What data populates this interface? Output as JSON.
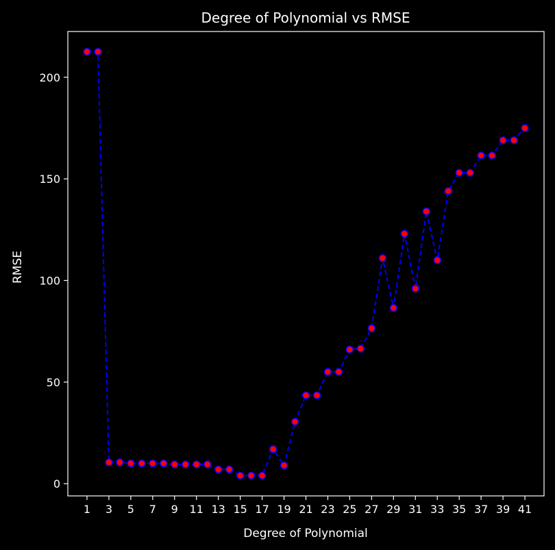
{
  "chart_data": {
    "type": "line",
    "title": "Degree of Polynomial vs RMSE",
    "xlabel": "Degree of Polynomial",
    "ylabel": "RMSE",
    "xlim": [
      -0.75,
      42.75
    ],
    "ylim": [
      -6,
      222.5
    ],
    "x_ticks": [
      1,
      3,
      5,
      7,
      9,
      11,
      13,
      15,
      17,
      19,
      21,
      23,
      25,
      27,
      29,
      31,
      33,
      35,
      37,
      39,
      41
    ],
    "y_ticks": [
      0,
      50,
      100,
      150,
      200
    ],
    "grid": false,
    "series": [
      {
        "name": "RMSE",
        "line_color": "#0000ff",
        "line_style": "dashed",
        "marker_face_color": "#ff0000",
        "marker_edge_color": "#0000ff",
        "x": [
          1,
          2,
          3,
          4,
          5,
          6,
          7,
          8,
          9,
          10,
          11,
          12,
          13,
          14,
          15,
          16,
          17,
          18,
          19,
          20,
          21,
          22,
          23,
          24,
          25,
          26,
          27,
          28,
          29,
          30,
          31,
          32,
          33,
          34,
          35,
          36,
          37,
          38,
          39,
          40,
          41
        ],
        "values": [
          212.5,
          212.5,
          10.5,
          10.5,
          10,
          10,
          10,
          10,
          9.5,
          9.5,
          9.5,
          9.5,
          7,
          7,
          4,
          4,
          4,
          17,
          9,
          30.5,
          43.5,
          43.5,
          55,
          55,
          66,
          66.5,
          76.5,
          111,
          86.5,
          123,
          96,
          134,
          110,
          144,
          153,
          153,
          161.5,
          161.5,
          169,
          169,
          175
        ]
      }
    ]
  }
}
